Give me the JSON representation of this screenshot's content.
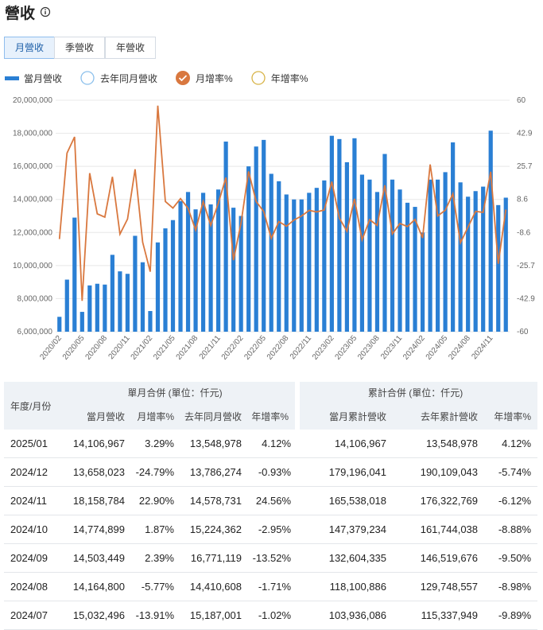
{
  "header": {
    "title": "營收"
  },
  "tabs": [
    "月營收",
    "季營收",
    "年營收"
  ],
  "chart_data": {
    "type": "bar-line",
    "categories": [
      "2020/02",
      null,
      null,
      "2020/05",
      null,
      null,
      "2020/08",
      null,
      null,
      "2020/11",
      null,
      null,
      "2021/02",
      null,
      null,
      "2021/05",
      null,
      null,
      "2021/08",
      null,
      null,
      "2021/11",
      null,
      null,
      "2022/02",
      null,
      null,
      "2022/05",
      null,
      null,
      "2022/08",
      null,
      null,
      "2022/11",
      null,
      null,
      "2023/02",
      null,
      null,
      "2023/05",
      null,
      null,
      "2023/08",
      null,
      null,
      "2023/11",
      null,
      null,
      "2024/02",
      null,
      null,
      "2024/05",
      null,
      null,
      "2024/08",
      null,
      null,
      "2024/11",
      null,
      null
    ],
    "series": [
      {
        "name": "當月營收",
        "type": "bar",
        "color": "#2a7fd4",
        "values": [
          6900000,
          9150000,
          12900000,
          7200000,
          8800000,
          8900000,
          8850000,
          10650000,
          9650000,
          9500000,
          11800000,
          10200000,
          7250000,
          11400000,
          12250000,
          12750000,
          13900000,
          14450000,
          13400000,
          14400000,
          13700000,
          14600000,
          17500000,
          13500000,
          13000000,
          16000000,
          17200000,
          17600000,
          15550000,
          15100000,
          14300000,
          14000000,
          14000000,
          14400000,
          14700000,
          15150000,
          17850000,
          17650000,
          16250000,
          17700000,
          15500000,
          15200000,
          14450000,
          16750000,
          15200000,
          14600000,
          13800000,
          13550000,
          12000000,
          15200000,
          15200000,
          15650000,
          17450000,
          15032496,
          14164800,
          14503449,
          14774899,
          18158784,
          13658023,
          14106967
        ]
      },
      {
        "name": "月增率%",
        "type": "line",
        "axis": "y2",
        "color": "#d9783f",
        "values": [
          -12,
          32.6,
          41,
          -44,
          22.2,
          1.1,
          -0.6,
          20.3,
          -9.4,
          -1.6,
          24.2,
          -13.6,
          -28.9,
          57.2,
          7.5,
          4.1,
          9,
          4,
          -7.3,
          7.5,
          -4.9,
          6.6,
          19.9,
          -22.9,
          -3.7,
          23.1,
          7.5,
          2.3,
          -11.6,
          -2.9,
          -5.3,
          -2.1,
          0,
          2.9,
          2.1,
          3.1,
          17.8,
          -1.1,
          -7.9,
          8.9,
          -12.4,
          -1.9,
          -4.9,
          15.9,
          -9.3,
          -3.9,
          -5.5,
          -1.8,
          -11.4,
          26.7,
          0,
          3,
          11.5,
          -13.91,
          -5.77,
          2.39,
          1.87,
          22.9,
          -24.79,
          3.29
        ]
      }
    ],
    "hidden_series": [
      {
        "name": "去年同月營收",
        "color": "#8cc0ec"
      },
      {
        "name": "年增率%",
        "color": "#d8b448"
      }
    ],
    "ylim": [
      6000000,
      20000000
    ],
    "yticks": [
      {
        "value": 6000000,
        "label": "6,000,000"
      },
      {
        "value": 8000000,
        "label": "8,000,000"
      },
      {
        "value": 10000000,
        "label": "10,000,000"
      },
      {
        "value": 12000000,
        "label": "12,000,000"
      },
      {
        "value": 14000000,
        "label": "14,000,000"
      },
      {
        "value": 16000000,
        "label": "16,000,000"
      },
      {
        "value": 18000000,
        "label": "18,000,000"
      },
      {
        "value": 20000000,
        "label": "20,000,000"
      }
    ],
    "y2lim": [
      -60,
      60
    ],
    "y2ticks": [
      -60,
      -42.9,
      -25.7,
      -8.6,
      8.6,
      25.7,
      42.9,
      60
    ],
    "grid": true
  },
  "table": {
    "group_headers": [
      "單月合併 (單位：仟元)",
      "累計合併 (單位：仟元)"
    ],
    "columns": [
      "年度/月份",
      "當月營收",
      "月增率%",
      "去年同月營收",
      "年增率%",
      "當月累計營收",
      "去年累計營收",
      "年增率%"
    ],
    "rows": [
      [
        "2025/01",
        "14,106,967",
        "3.29%",
        "13,548,978",
        "4.12%",
        "14,106,967",
        "13,548,978",
        "4.12%"
      ],
      [
        "2024/12",
        "13,658,023",
        "-24.79%",
        "13,786,274",
        "-0.93%",
        "179,196,041",
        "190,109,043",
        "-5.74%"
      ],
      [
        "2024/11",
        "18,158,784",
        "22.90%",
        "14,578,731",
        "24.56%",
        "165,538,018",
        "176,322,769",
        "-6.12%"
      ],
      [
        "2024/10",
        "14,774,899",
        "1.87%",
        "15,224,362",
        "-2.95%",
        "147,379,234",
        "161,744,038",
        "-8.88%"
      ],
      [
        "2024/09",
        "14,503,449",
        "2.39%",
        "16,771,119",
        "-13.52%",
        "132,604,335",
        "146,519,676",
        "-9.50%"
      ],
      [
        "2024/08",
        "14,164,800",
        "-5.77%",
        "14,410,608",
        "-1.71%",
        "118,100,886",
        "129,748,557",
        "-8.98%"
      ],
      [
        "2024/07",
        "15,032,496",
        "-13.91%",
        "15,187,001",
        "-1.02%",
        "103,936,086",
        "115,337,949",
        "-9.89%"
      ]
    ]
  }
}
